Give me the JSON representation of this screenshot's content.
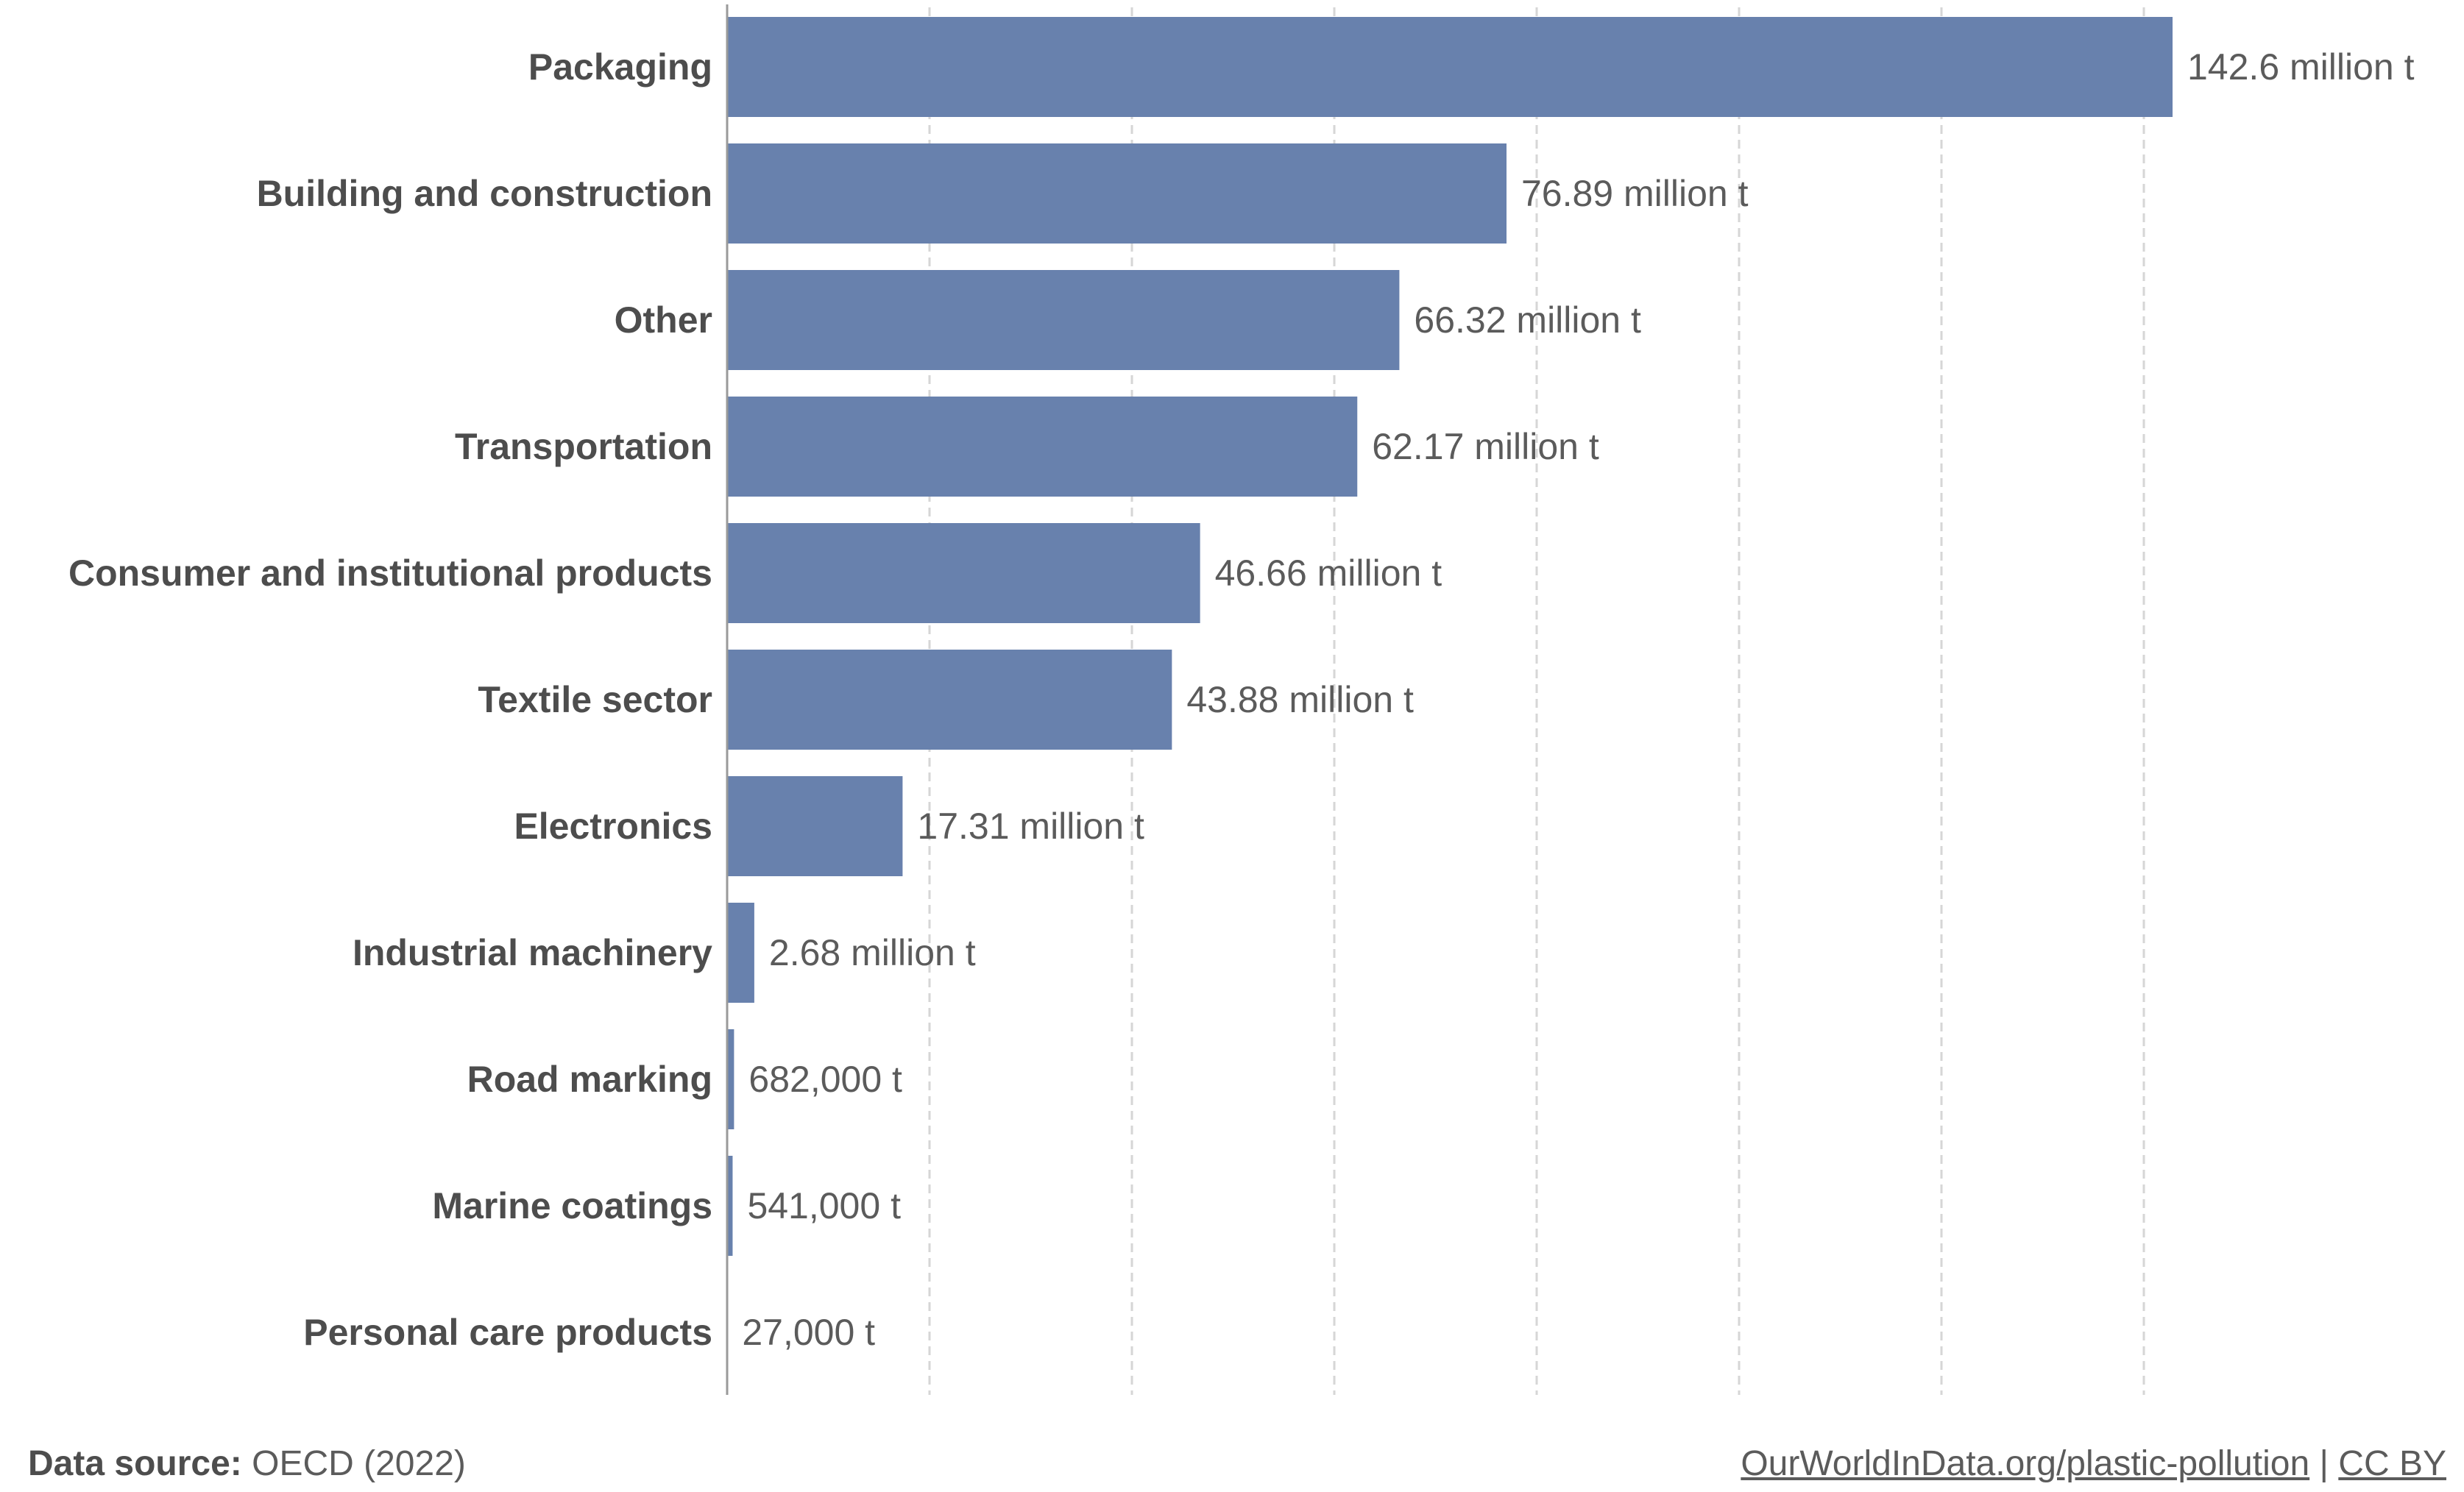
{
  "chart_data": {
    "type": "bar",
    "orientation": "horizontal",
    "categories": [
      "Packaging",
      "Building and construction",
      "Other",
      "Transportation",
      "Consumer and institutional products",
      "Textile sector",
      "Electronics",
      "Industrial machinery",
      "Road marking",
      "Marine coatings",
      "Personal care products"
    ],
    "values": [
      142600000,
      76890000,
      66320000,
      62170000,
      46660000,
      43880000,
      17310000,
      2680000,
      682000,
      541000,
      27000
    ],
    "value_labels": [
      "142.6 million t",
      "76.89 million t",
      "66.32 million t",
      "62.17 million t",
      "46.66 million t",
      "43.88 million t",
      "17.31 million t",
      "2.68 million t",
      "682,000 t",
      "541,000 t",
      "27,000 t"
    ],
    "xlim": [
      0,
      142600000
    ],
    "grid": true,
    "bar_color": "#6881ad"
  },
  "footer": {
    "source_label": "Data source:",
    "source_value": "OECD (2022)",
    "link_text": "OurWorldInData.org/plastic-pollution",
    "separator": "|",
    "license": "CC BY"
  }
}
